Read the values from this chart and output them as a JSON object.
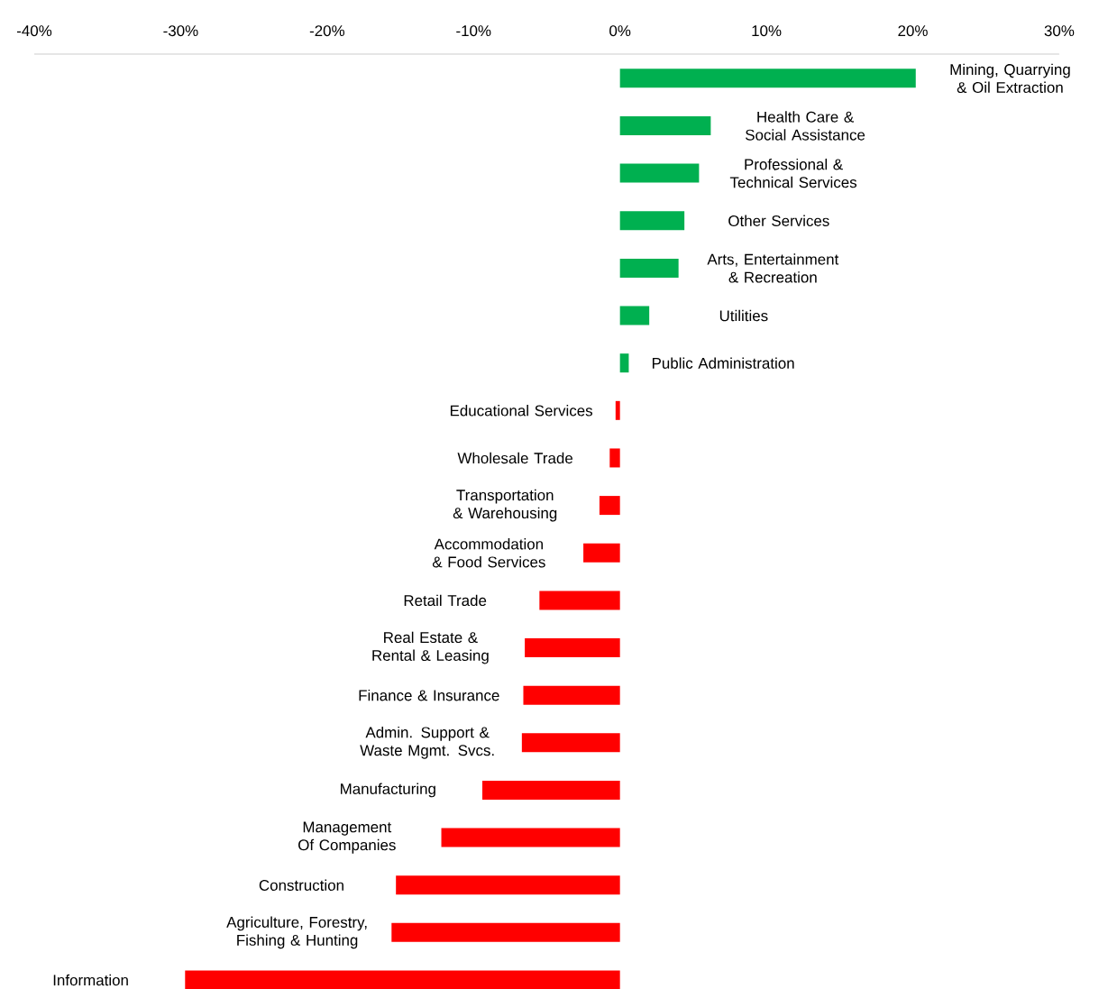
{
  "chart_data": {
    "type": "bar",
    "orientation": "horizontal",
    "categories": [
      "Mining, Quarrying & Oil Extraction",
      "Health Care & Social Assistance",
      "Professional & Technical Services",
      "Other Services",
      "Arts, Entertainment & Recreation",
      "Utilities",
      "Public Administration",
      "Educational Services",
      "Wholesale Trade",
      "Transportation & Warehousing",
      "Accommodation & Food Services",
      "Retail Trade",
      "Real Estate & Rental & Leasing",
      "Finance & Insurance",
      "Admin. Support & Waste Mgmt. Svcs.",
      "Manufacturing",
      "Management Of Companies",
      "Construction",
      "Agriculture, Forestry, Fishing & Hunting",
      "Information"
    ],
    "values": [
      20.2,
      6.2,
      5.4,
      4.4,
      4.0,
      2.0,
      0.6,
      -0.3,
      -0.7,
      -1.4,
      -2.5,
      -5.5,
      -6.5,
      -6.6,
      -6.7,
      -9.4,
      -12.2,
      -15.3,
      -15.6,
      -29.7
    ],
    "colors": [
      "#00b050",
      "#00b050",
      "#00b050",
      "#00b050",
      "#00b050",
      "#00b050",
      "#00b050",
      "#ff0000",
      "#ff0000",
      "#ff0000",
      "#ff0000",
      "#ff0000",
      "#ff0000",
      "#ff0000",
      "#ff0000",
      "#ff0000",
      "#ff0000",
      "#ff0000",
      "#ff0000",
      "#ff0000"
    ],
    "xlim": [
      -40,
      30
    ],
    "xticks": [
      {
        "value": -40,
        "label": "-40%"
      },
      {
        "value": -30,
        "label": "-30%"
      },
      {
        "value": -20,
        "label": "-20%"
      },
      {
        "value": -10,
        "label": "-10%"
      },
      {
        "value": 0,
        "label": "0%"
      },
      {
        "value": 10,
        "label": "10%"
      },
      {
        "value": 20,
        "label": "20%"
      },
      {
        "value": 30,
        "label": "30%"
      }
    ]
  }
}
